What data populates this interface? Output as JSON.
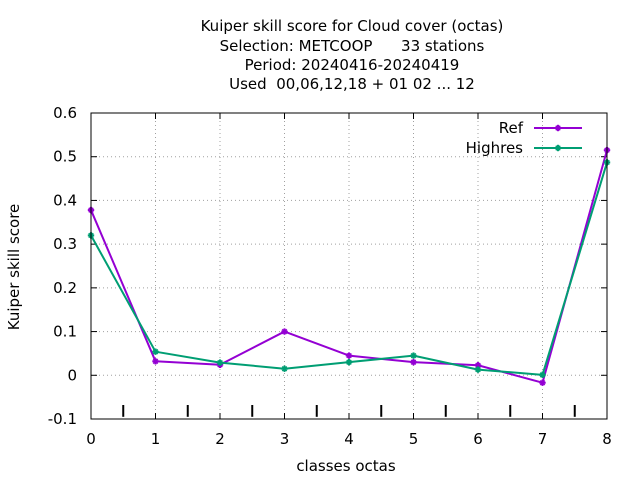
{
  "chart_data": {
    "type": "line",
    "title_lines": [
      "Kuiper skill score  for Cloud cover (octas)",
      "Selection: METCOOP      33 stations",
      "Period: 20240416-20240419",
      "Used  00,06,12,18 + 01 02 ... 12"
    ],
    "xlabel": "classes octas",
    "ylabel": "Kuiper skill score",
    "xlim": [
      0,
      8
    ],
    "ylim": [
      -0.1,
      0.6
    ],
    "x_ticks": [
      0,
      1,
      2,
      3,
      4,
      5,
      6,
      7,
      8
    ],
    "x_tick_labels": [
      "0",
      "1",
      "2",
      "3",
      "4",
      "5",
      "6",
      "7",
      "8"
    ],
    "y_ticks": [
      -0.1,
      0,
      0.1,
      0.2,
      0.3,
      0.4,
      0.5,
      0.6
    ],
    "y_tick_labels": [
      "-0.1",
      "0",
      "0.1",
      "0.2",
      "0.3",
      "0.4",
      "0.5",
      "0.6"
    ],
    "class_separators": [
      0.5,
      1.5,
      2.5,
      3.5,
      4.5,
      5.5,
      6.5,
      7.5
    ],
    "grid": true,
    "legend_position": "top-right",
    "x": [
      0,
      1,
      2,
      3,
      4,
      5,
      6,
      7,
      8
    ],
    "series": [
      {
        "name": "Ref",
        "color": "#9400d3",
        "values": [
          0.378,
          0.032,
          0.024,
          0.1,
          0.045,
          0.03,
          0.023,
          -0.017,
          0.515
        ]
      },
      {
        "name": "Highres",
        "color": "#009e73",
        "values": [
          0.32,
          0.054,
          0.029,
          0.015,
          0.03,
          0.045,
          0.013,
          0.001,
          0.487
        ]
      }
    ]
  }
}
